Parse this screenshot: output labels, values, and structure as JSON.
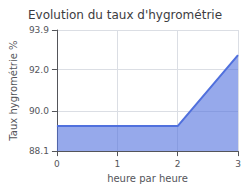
{
  "chart_data": {
    "type": "area",
    "title": "Evolution du taux d'hygrométrie",
    "xlabel": "heure par heure",
    "ylabel": "Taux hygrométrie %",
    "x": [
      0,
      2,
      3
    ],
    "values": [
      89.3,
      89.3,
      92.7
    ],
    "xlim": [
      0,
      3
    ],
    "xticks": [
      0,
      1,
      2,
      3
    ],
    "ylim": [
      88.1,
      93.9
    ],
    "yticks": [
      88.1,
      {
        "value": 90.0,
        "label": "90.0"
      },
      {
        "value": 92.0,
        "label": "92.0"
      },
      93.9
    ],
    "grid": true
  }
}
